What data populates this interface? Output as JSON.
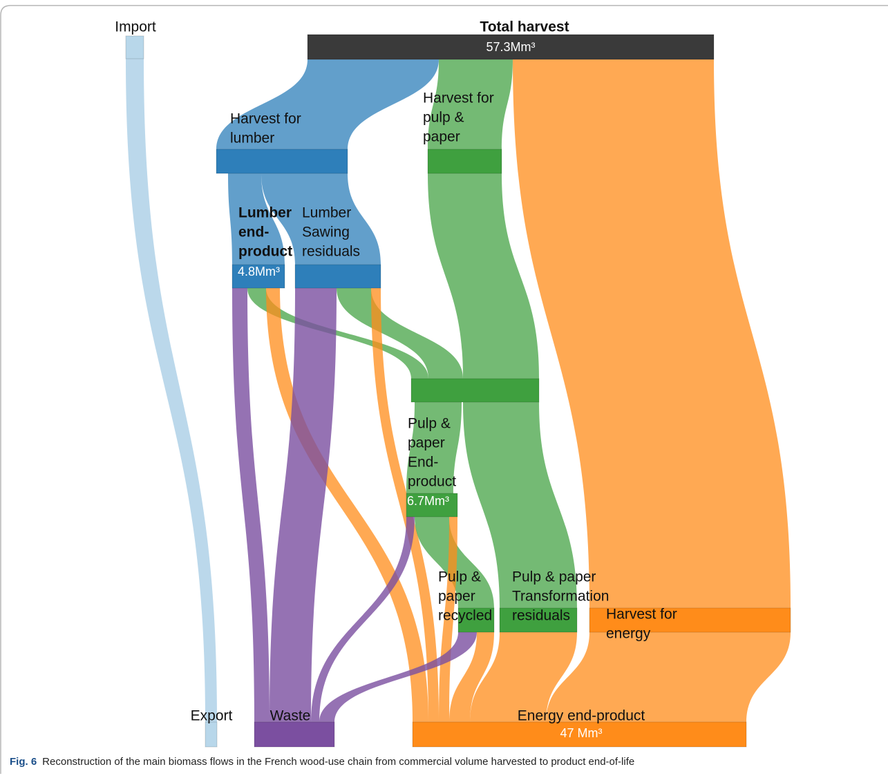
{
  "nodes": [
    {
      "label_lines": [
        "Import"
      ]
    },
    {
      "label_lines": [
        "Total harvest"
      ],
      "value": "57.3Mm³"
    },
    {
      "label_lines": [
        "Harvest for",
        "lumber"
      ]
    },
    {
      "label_lines": [
        "Harvest for",
        "pulp &",
        "paper"
      ]
    },
    {
      "label_lines": [
        "Lumber",
        "end-",
        "product"
      ],
      "value": "4.8Mm³"
    },
    {
      "label_lines": [
        "Lumber",
        "Sawing",
        "residuals"
      ]
    },
    {
      "label_lines": [
        "Pulp &",
        "paper",
        "End-",
        "product"
      ],
      "value": "6.7Mm³"
    },
    {
      "label_lines": [
        "Pulp &",
        "paper",
        "recycled"
      ]
    },
    {
      "label_lines": [
        "Pulp & paper",
        "Transformation",
        "residuals"
      ]
    },
    {
      "label_lines": [
        "Harvest for",
        "energy"
      ]
    },
    {
      "label_lines": [
        "Export"
      ]
    },
    {
      "label_lines": [
        "Waste"
      ]
    },
    {
      "label_lines": [
        "Energy end-product"
      ],
      "value": "47 Mm³"
    }
  ],
  "caption": {
    "label": "Fig. 6",
    "text": "Reconstruction of the main biomass flows in the French wood-use chain from commercial volume harvested to product end-of-life"
  }
}
